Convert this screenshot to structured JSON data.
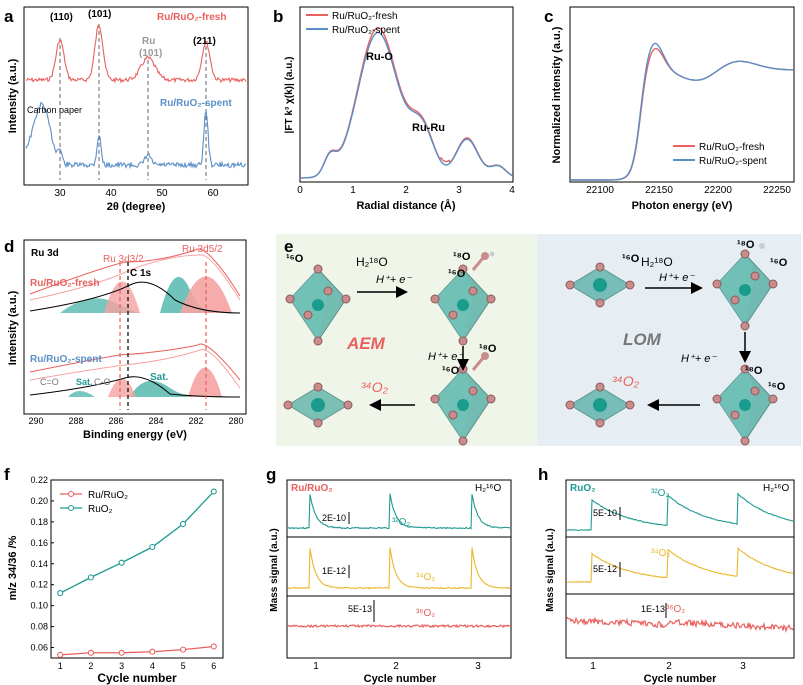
{
  "panels": {
    "a": {
      "letter": "a",
      "ylabel": "Intensity (a.u.)",
      "xlabel": "2θ (degree)",
      "peaks": [
        "(110)",
        "(101)",
        "Ru",
        "(101)",
        "(211)"
      ],
      "carbon": "Carbon paper",
      "fresh": "Ru/RuO₂-fresh",
      "spent": "Ru/RuO₂-spent",
      "xticks": [
        "30",
        "40",
        "50",
        "60"
      ]
    },
    "b": {
      "letter": "b",
      "ylabel": "|FT k³ χ(k)| (a.u.)",
      "xlabel": "Radial distance (Å)",
      "legend": [
        "Ru/RuO₂-fresh",
        "Ru/RuO₂-spent"
      ],
      "ruo": "Ru-O",
      "ruru": "Ru-Ru",
      "xticks": [
        "0",
        "1",
        "2",
        "3",
        "4"
      ]
    },
    "c": {
      "letter": "c",
      "ylabel": "Normalized intensity (a.u.)",
      "xlabel": "Photon energy (eV)",
      "legend": [
        "Ru/RuO₂-fresh",
        "Ru/RuO₂-spent"
      ],
      "xticks": [
        "22100",
        "22150",
        "22200",
        "22250"
      ]
    },
    "d": {
      "letter": "d",
      "title": "Ru 3d",
      "ylabel": "Intensity (a.u.)",
      "xlabel": "Binding energy (eV)",
      "fresh": "Ru/RuO₂-fresh",
      "spent": "Ru/RuO₂-spent",
      "d32": "Ru 3d3/2",
      "c1s": "C 1s",
      "d52": "Ru 3d5/2",
      "sat": "Sat.",
      "sat2": "Sat.",
      "co": "C-O",
      "cdo": "C=O",
      "xticks": [
        "290",
        "288",
        "286",
        "284",
        "282",
        "280"
      ]
    },
    "e": {
      "letter": "e",
      "o16": "¹⁶O",
      "o18": "¹⁸O",
      "h218o": "H₂¹⁸O",
      "hplus": "H⁺+ e⁻",
      "o34": "³⁴O₂",
      "aem": "AEM",
      "lom": "LOM"
    },
    "f": {
      "letter": "f",
      "ylabel": "m/z 34/36 /%",
      "xlabel": "Cycle number",
      "legend": [
        "Ru/RuO₂",
        "RuO₂"
      ],
      "yticks": [
        "0.06",
        "0.08",
        "0.10",
        "0.12",
        "0.14",
        "0.16",
        "0.18",
        "0.20",
        "0.22"
      ],
      "xticks": [
        "1",
        "2",
        "3",
        "4",
        "5",
        "6"
      ]
    },
    "g": {
      "letter": "g",
      "sample": "Ru/RuO₂",
      "water": "H₂¹⁶O",
      "ylabel": "Mass signal (a.u.)",
      "xlabel": "Cycle number",
      "scales": [
        "2E-10",
        "1E-12",
        "5E-13"
      ],
      "species": [
        "³²O₂",
        "³⁴O₂",
        "³⁶O₂"
      ],
      "xticks": [
        "1",
        "2",
        "3"
      ]
    },
    "h": {
      "letter": "h",
      "sample": "RuO₂",
      "water": "H₂¹⁶O",
      "ylabel": "Mass signal (a.u.)",
      "xlabel": "Cycle number",
      "scales": [
        "5E-10",
        "5E-12",
        "1E-13"
      ],
      "species": [
        "³²O₂",
        "³⁴O₂",
        "³⁶O₂"
      ],
      "xticks": [
        "1",
        "2",
        "3"
      ]
    }
  },
  "chart_data": [
    {
      "type": "line",
      "panel": "f",
      "title": "",
      "xlabel": "Cycle number",
      "ylabel": "m/z 34/36 /%",
      "x": [
        1,
        2,
        3,
        4,
        5,
        6
      ],
      "ylim": [
        0.05,
        0.22
      ],
      "series": [
        {
          "name": "Ru/RuO₂",
          "color": "#e8615e",
          "values": [
            0.053,
            0.055,
            0.055,
            0.056,
            0.058,
            0.061
          ]
        },
        {
          "name": "RuO₂",
          "color": "#1e9a92",
          "values": [
            0.112,
            0.127,
            0.141,
            0.156,
            0.178,
            0.209
          ]
        }
      ]
    },
    {
      "type": "line",
      "panel": "b",
      "xlabel": "Radial distance (Å)",
      "ylabel": "|FT k³ χ(k)| (a.u.)",
      "xlim": [
        0,
        4
      ],
      "series": [
        {
          "name": "Ru/RuO₂-fresh",
          "color": "#e8615e"
        },
        {
          "name": "Ru/RuO₂-spent",
          "color": "#5b8fc7"
        }
      ]
    },
    {
      "type": "line",
      "panel": "c",
      "xlabel": "Photon energy (eV)",
      "ylabel": "Normalized intensity (a.u.)",
      "xlim": [
        22075,
        22260
      ],
      "series": [
        {
          "name": "Ru/RuO₂-fresh",
          "color": "#e8615e"
        },
        {
          "name": "Ru/RuO₂-spent",
          "color": "#5b8fc7"
        }
      ]
    }
  ],
  "colors": {
    "red": "#e8615e",
    "blue": "#5b8fc7",
    "teal": "#1e9a92",
    "yellow": "#e9b82a",
    "pink": "#f4a3a1",
    "tealfill": "#56b9ae"
  }
}
